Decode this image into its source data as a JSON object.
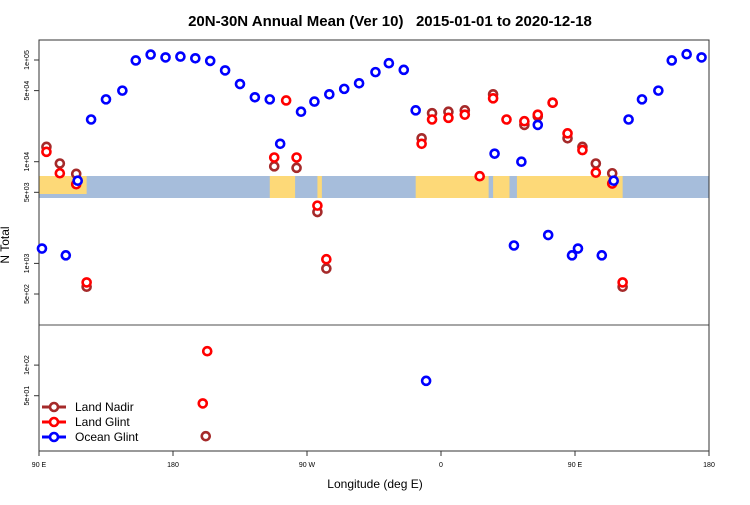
{
  "chart_data": {
    "type": "scatter",
    "title": "20N-30N Annual Mean (Ver 10)   2015-01-01 to 2020-12-18",
    "xlabel": "Longitude (deg E)",
    "ylabel": "N Total",
    "y_scale": "log",
    "xlim": [
      90,
      540
    ],
    "ylim": [
      14,
      160000
    ],
    "x_ticks": [
      {
        "value": 90,
        "label": "90 E"
      },
      {
        "value": 180,
        "label": "180"
      },
      {
        "value": 270,
        "label": "90 W"
      },
      {
        "value": 360,
        "label": "0"
      },
      {
        "value": 450,
        "label": "90 E"
      },
      {
        "value": 540,
        "label": "180"
      }
    ],
    "y_ticks": [
      {
        "value": 100000,
        "label": "1e+05"
      },
      {
        "value": 50000,
        "label": "5e+04"
      },
      {
        "value": 10000,
        "label": "1e+04"
      },
      {
        "value": 5000,
        "label": "5e+03"
      },
      {
        "value": 1000,
        "label": "1e+03"
      },
      {
        "value": 500,
        "label": "5e+02"
      },
      {
        "value": 100,
        "label": "1e+02"
      },
      {
        "value": 50,
        "label": "5e+01"
      }
    ],
    "separator_value": 250,
    "grid": false,
    "legend_position": "bottom-left",
    "map_band": {
      "colors": {
        "ocean": "#a6bddb",
        "land": "#fdd978"
      }
    },
    "series": [
      {
        "name": "Land Nadir",
        "color": "#a52a2a",
        "points": [
          [
            95,
            14000
          ],
          [
            104,
            9600
          ],
          [
            115,
            7600
          ],
          [
            122,
            590
          ],
          [
            202,
            20
          ],
          [
            248,
            9000
          ],
          [
            263,
            8700
          ],
          [
            277,
            3200
          ],
          [
            283,
            890
          ],
          [
            347,
            17000
          ],
          [
            354,
            30000
          ],
          [
            365,
            31000
          ],
          [
            376,
            32000
          ],
          [
            395,
            46000
          ],
          [
            416,
            23000
          ],
          [
            425,
            28000
          ],
          [
            435,
            38000
          ],
          [
            445,
            17000
          ],
          [
            455,
            14000
          ],
          [
            464,
            9600
          ],
          [
            475,
            7700
          ],
          [
            482,
            590
          ]
        ]
      },
      {
        "name": "Land Glint",
        "color": "#ff0000",
        "points": [
          [
            95,
            12500
          ],
          [
            104,
            7700
          ],
          [
            115,
            6000
          ],
          [
            122,
            650
          ],
          [
            200,
            42
          ],
          [
            203,
            137
          ],
          [
            248,
            11000
          ],
          [
            256,
            40000
          ],
          [
            263,
            11000
          ],
          [
            277,
            3700
          ],
          [
            283,
            1100
          ],
          [
            347,
            15000
          ],
          [
            354,
            26000
          ],
          [
            365,
            27000
          ],
          [
            376,
            29000
          ],
          [
            386,
            7200
          ],
          [
            395,
            42000
          ],
          [
            404,
            26000
          ],
          [
            416,
            25000
          ],
          [
            425,
            29000
          ],
          [
            435,
            38000
          ],
          [
            445,
            19000
          ],
          [
            455,
            13000
          ],
          [
            464,
            7800
          ],
          [
            475,
            6100
          ],
          [
            482,
            650
          ]
        ]
      },
      {
        "name": "Ocean Glint",
        "color": "#0000ff",
        "points": [
          [
            92,
            1400
          ],
          [
            108,
            1200
          ],
          [
            116,
            6500
          ],
          [
            125,
            26000
          ],
          [
            135,
            41000
          ],
          [
            146,
            50000
          ],
          [
            155,
            99000
          ],
          [
            165,
            113000
          ],
          [
            175,
            106000
          ],
          [
            185,
            108000
          ],
          [
            195,
            104000
          ],
          [
            205,
            98000
          ],
          [
            215,
            79000
          ],
          [
            225,
            58000
          ],
          [
            235,
            43000
          ],
          [
            245,
            41000
          ],
          [
            252,
            15000
          ],
          [
            266,
            31000
          ],
          [
            275,
            39000
          ],
          [
            285,
            46000
          ],
          [
            295,
            52000
          ],
          [
            305,
            59000
          ],
          [
            316,
            76000
          ],
          [
            325,
            93000
          ],
          [
            335,
            80000
          ],
          [
            343,
            32000
          ],
          [
            350,
            70
          ],
          [
            396,
            12000
          ],
          [
            409,
            1500
          ],
          [
            414,
            10000
          ],
          [
            425,
            23000
          ],
          [
            432,
            1900
          ],
          [
            448,
            1200
          ],
          [
            452,
            1400
          ],
          [
            468,
            1200
          ],
          [
            476,
            6500
          ],
          [
            486,
            26000
          ],
          [
            495,
            41000
          ],
          [
            506,
            50000
          ],
          [
            515,
            99000
          ],
          [
            525,
            114000
          ],
          [
            535,
            106000
          ]
        ]
      }
    ]
  }
}
